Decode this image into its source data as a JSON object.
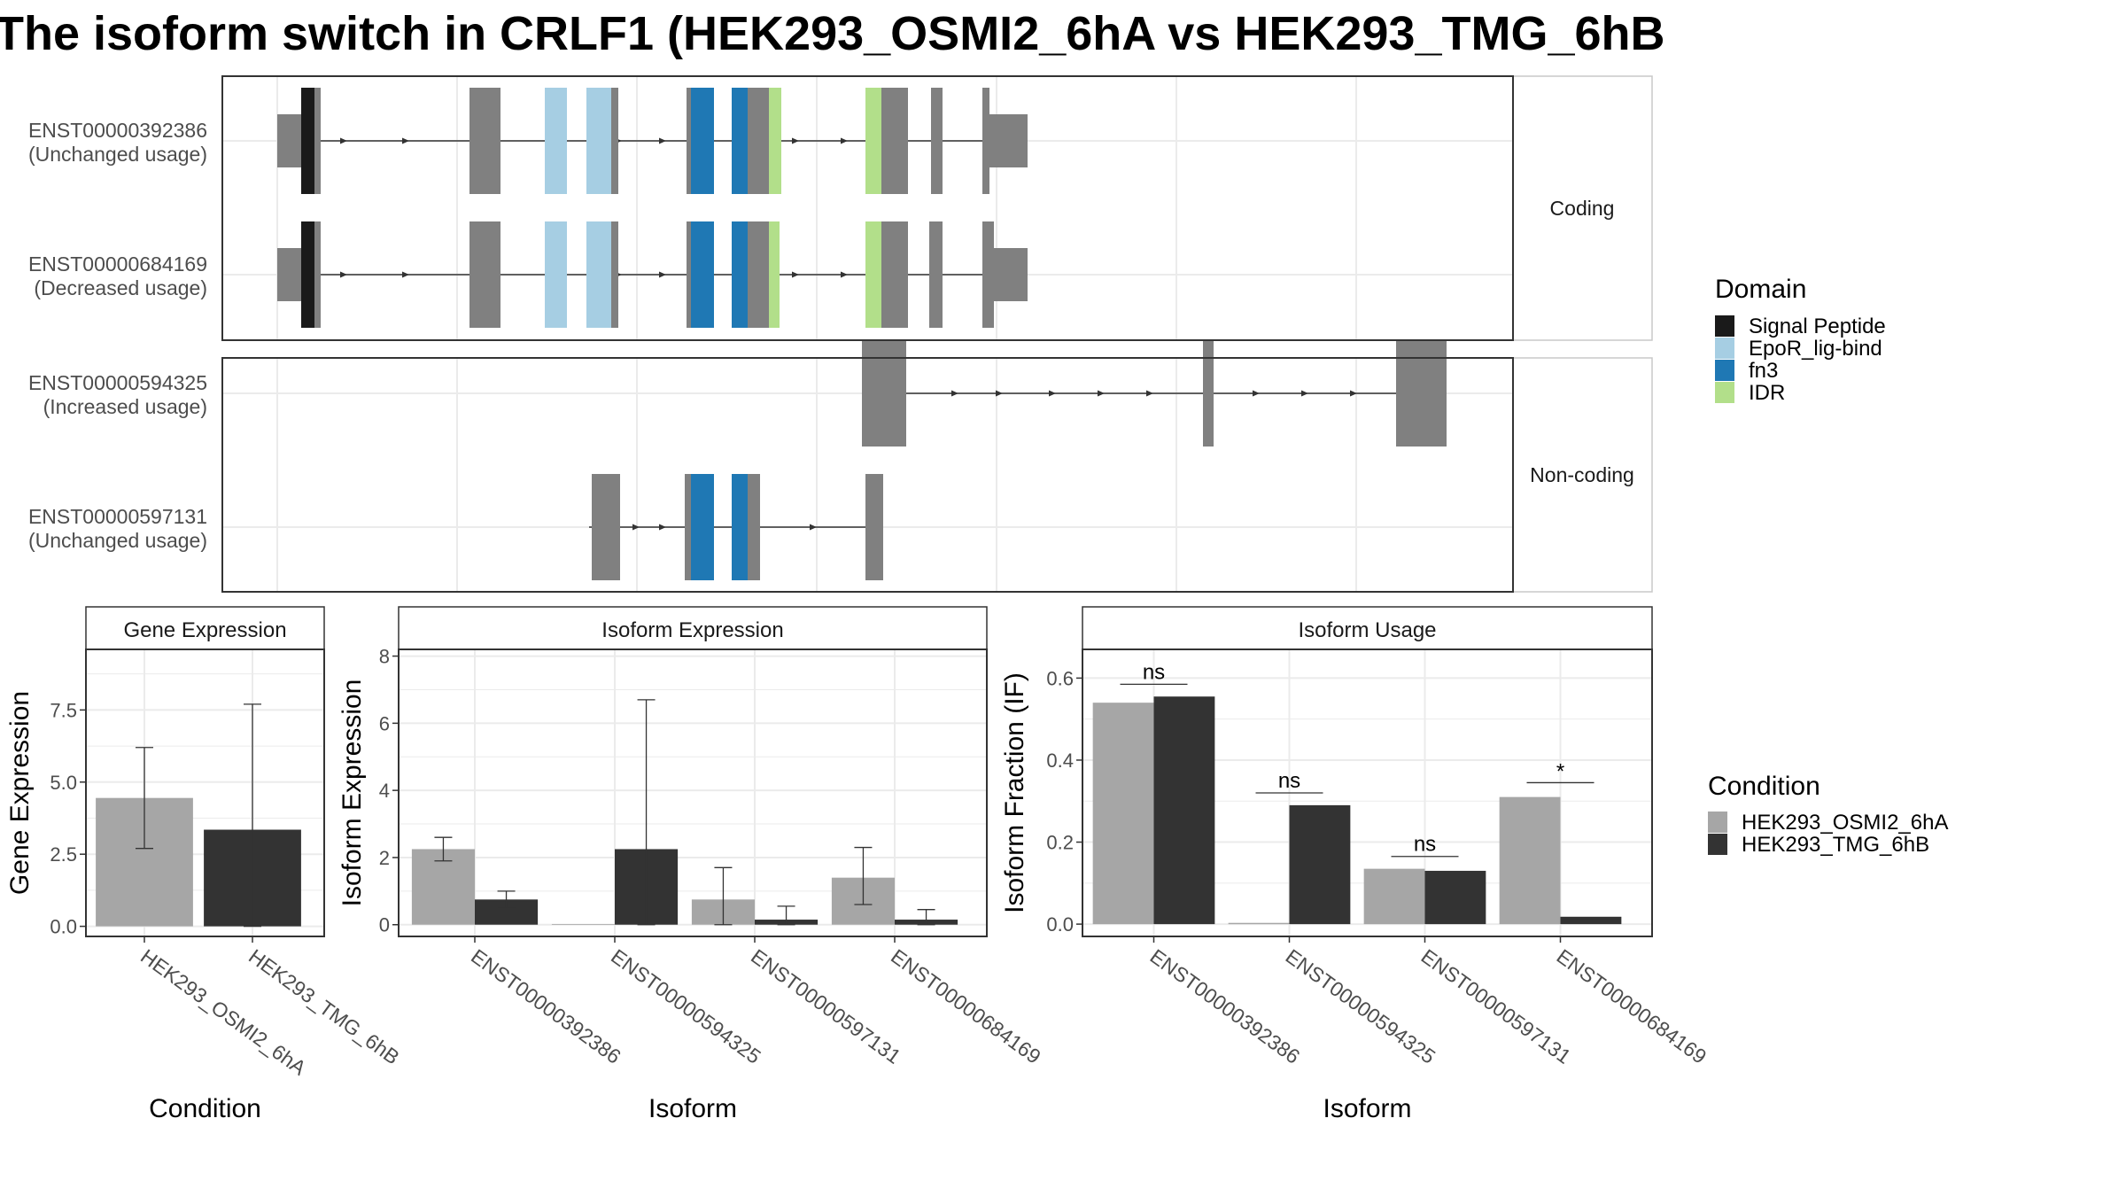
{
  "title": "The isoform switch in CRLF1 (HEK293_OSMI2_6hA vs HEK293_TMG_6hB",
  "colors": {
    "signal_peptide": "#1a1a1a",
    "epor": "#a6cee3",
    "fn3": "#1f78b4",
    "idr": "#b2df8a",
    "exon": "#808080",
    "cond_a": "#a6a6a6",
    "cond_b": "#333333"
  },
  "structure": {
    "facets": [
      "Coding",
      "Non-coding"
    ],
    "isoforms": [
      {
        "id": "ENST00000392386",
        "note": "(Unchanged usage)",
        "facet": 0,
        "intron": [
          320,
          1120
        ],
        "arrows": [
          390,
          460,
          700,
          750,
          900,
          955
        ],
        "exons": [
          [
            313,
            340,
            "utr"
          ],
          [
            340,
            355,
            "sp"
          ],
          [
            355,
            362,
            "cds"
          ],
          [
            530,
            565,
            "cds"
          ],
          [
            615,
            640,
            "epor"
          ],
          [
            662,
            690,
            "epor"
          ],
          [
            690,
            698,
            "cds"
          ],
          [
            775,
            780,
            "cds"
          ],
          [
            780,
            806,
            "fn3"
          ],
          [
            826,
            844,
            "fn3"
          ],
          [
            844,
            868,
            "cds"
          ],
          [
            868,
            882,
            "idr"
          ],
          [
            977,
            995,
            "idr"
          ],
          [
            995,
            1025,
            "cds"
          ],
          [
            1051,
            1064,
            "cds"
          ],
          [
            1109,
            1117,
            "cds"
          ],
          [
            1117,
            1160,
            "utr"
          ]
        ]
      },
      {
        "id": "ENST00000684169",
        "note": "(Decreased usage)",
        "facet": 0,
        "intron": [
          320,
          1120
        ],
        "arrows": [
          390,
          460,
          700,
          750,
          900,
          955
        ],
        "exons": [
          [
            313,
            340,
            "utr"
          ],
          [
            340,
            355,
            "sp"
          ],
          [
            355,
            362,
            "cds"
          ],
          [
            530,
            565,
            "cds"
          ],
          [
            615,
            640,
            "epor"
          ],
          [
            662,
            690,
            "epor"
          ],
          [
            690,
            698,
            "cds"
          ],
          [
            775,
            780,
            "cds"
          ],
          [
            780,
            806,
            "fn3"
          ],
          [
            826,
            844,
            "fn3"
          ],
          [
            844,
            868,
            "cds"
          ],
          [
            868,
            880,
            "idr"
          ],
          [
            977,
            995,
            "idr"
          ],
          [
            995,
            1025,
            "cds"
          ],
          [
            1049,
            1064,
            "cds"
          ],
          [
            1109,
            1122,
            "cds"
          ],
          [
            1122,
            1160,
            "utr"
          ]
        ]
      },
      {
        "id": "ENST00000594325",
        "note": "(Increased usage)",
        "facet": 1,
        "intron": [
          1020,
          1580
        ],
        "arrows": [
          1080,
          1130,
          1190,
          1245,
          1300,
          1420,
          1475,
          1530
        ],
        "exons": [
          [
            973,
            1023,
            "cds"
          ],
          [
            1358,
            1370,
            "cds"
          ],
          [
            1576,
            1633,
            "cds"
          ]
        ]
      },
      {
        "id": "ENST00000597131",
        "note": "(Unchanged usage)",
        "facet": 1,
        "intron": [
          665,
          980
        ],
        "arrows": [
          720,
          750,
          920
        ],
        "exons": [
          [
            668,
            700,
            "cds"
          ],
          [
            773,
            780,
            "cds"
          ],
          [
            780,
            806,
            "fn3"
          ],
          [
            826,
            844,
            "fn3"
          ],
          [
            844,
            858,
            "cds"
          ],
          [
            977,
            997,
            "cds"
          ]
        ]
      }
    ]
  },
  "legend_domain": {
    "title": "Domain",
    "items": [
      {
        "label": "Signal Peptide",
        "color": "#1a1a1a"
      },
      {
        "label": "EpoR_lig-bind",
        "color": "#a6cee3"
      },
      {
        "label": "fn3",
        "color": "#1f78b4"
      },
      {
        "label": "IDR",
        "color": "#b2df8a"
      }
    ]
  },
  "legend_condition": {
    "title": "Condition",
    "items": [
      {
        "label": "HEK293_OSMI2_6hA",
        "color": "#a6a6a6"
      },
      {
        "label": "HEK293_TMG_6hB",
        "color": "#333333"
      }
    ]
  },
  "chart_data": [
    {
      "type": "bar",
      "title": "Gene Expression",
      "xlabel": "Condition",
      "ylabel": "Gene Expression",
      "categories": [
        "HEK293_OSMI2_6hA",
        "HEK293_TMG_6hB"
      ],
      "values": [
        4.45,
        3.35
      ],
      "error": [
        [
          2.7,
          6.2
        ],
        [
          0.0,
          7.7
        ]
      ],
      "ylim": [
        -0.35,
        9.6
      ],
      "yticks": [
        "0.0",
        "2.5",
        "5.0",
        "7.5"
      ],
      "grid": true
    },
    {
      "type": "bar",
      "title": "Isoform Expression",
      "xlabel": "Isoform",
      "ylabel": "Isoform Expression",
      "categories": [
        "ENST00000392386",
        "ENST00000594325",
        "ENST00000597131",
        "ENST00000684169"
      ],
      "series": [
        {
          "name": "HEK293_OSMI2_6hA",
          "values": [
            2.25,
            0.02,
            0.75,
            1.4
          ],
          "error": [
            [
              1.9,
              2.6
            ],
            null,
            [
              0.0,
              1.7
            ],
            [
              0.6,
              2.3
            ]
          ]
        },
        {
          "name": "HEK293_TMG_6hB",
          "values": [
            0.75,
            2.25,
            0.15,
            0.15
          ],
          "error": [
            [
              0.5,
              1.0
            ],
            [
              0.0,
              6.7
            ],
            [
              0.0,
              0.55
            ],
            [
              0.0,
              0.45
            ]
          ]
        }
      ],
      "ylim": [
        -0.35,
        8.2
      ],
      "yticks": [
        "0",
        "2",
        "4",
        "6",
        "8"
      ],
      "grid": true
    },
    {
      "type": "bar",
      "title": "Isoform Usage",
      "xlabel": "Isoform",
      "ylabel": "Isoform Fraction (IF)",
      "categories": [
        "ENST00000392386",
        "ENST00000594325",
        "ENST00000597131",
        "ENST00000684169"
      ],
      "series": [
        {
          "name": "HEK293_OSMI2_6hA",
          "values": [
            0.54,
            0.003,
            0.135,
            0.31
          ]
        },
        {
          "name": "HEK293_TMG_6hB",
          "values": [
            0.555,
            0.29,
            0.13,
            0.018
          ]
        }
      ],
      "significance": [
        "ns",
        "ns",
        "ns",
        "*"
      ],
      "sig_y": [
        0.585,
        0.32,
        0.165,
        0.345
      ],
      "ylim": [
        -0.03,
        0.67
      ],
      "yticks": [
        "0.0",
        "0.2",
        "0.4",
        "0.6"
      ],
      "grid": true
    }
  ]
}
